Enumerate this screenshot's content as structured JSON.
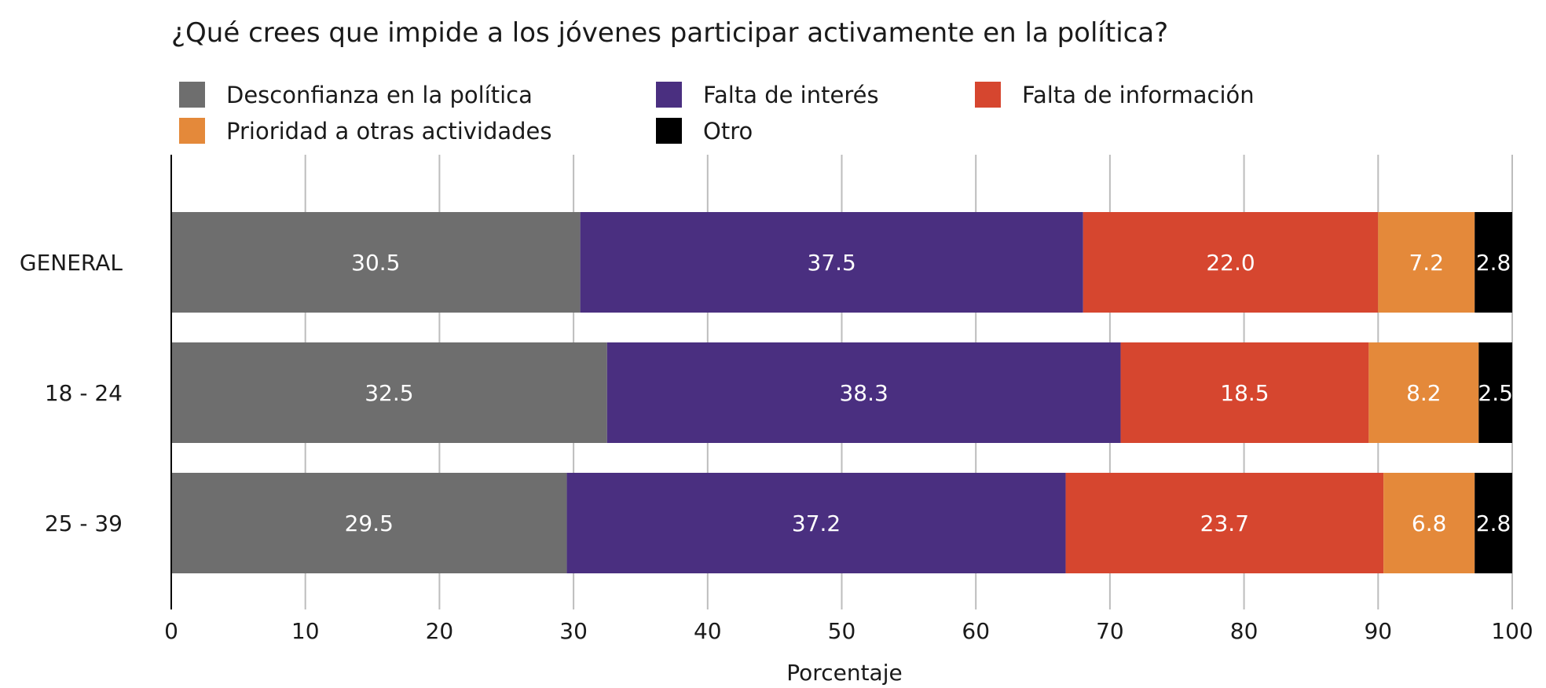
{
  "chart_data": {
    "type": "bar",
    "orientation": "horizontal",
    "stacked": true,
    "title": "¿Qué crees que impide a los jóvenes participar activamente en la política?",
    "xlabel": "Porcentaje",
    "ylabel": "",
    "xlim": [
      0,
      100
    ],
    "xticks": [
      "0",
      "10",
      "20",
      "30",
      "40",
      "50",
      "60",
      "70",
      "80",
      "90",
      "100"
    ],
    "grid": true,
    "legend_position": "top",
    "categories": [
      "GENERAL",
      "18 - 24",
      "25 - 39"
    ],
    "series": [
      {
        "name": "Desconfianza en la política",
        "color": "#6e6e6e",
        "values": [
          30.5,
          32.5,
          29.5
        ],
        "labels": [
          "30.5",
          "32.5",
          "29.5"
        ]
      },
      {
        "name": "Falta de interés",
        "color": "#4a2f80",
        "values": [
          37.5,
          38.3,
          37.2
        ],
        "labels": [
          "37.5",
          "38.3",
          "37.2"
        ]
      },
      {
        "name": "Falta de información",
        "color": "#d6462f",
        "values": [
          22.0,
          18.5,
          23.7
        ],
        "labels": [
          "22.0",
          "18.5",
          "23.7"
        ]
      },
      {
        "name": "Prioridad a otras actividades",
        "color": "#e4893a",
        "values": [
          7.2,
          8.2,
          6.8
        ],
        "labels": [
          "7.2",
          "8.2",
          "6.8"
        ]
      },
      {
        "name": "Otro",
        "color": "#000000",
        "values": [
          2.8,
          2.5,
          2.8
        ],
        "labels": [
          "2.8",
          "2.5",
          "2.8"
        ]
      }
    ]
  }
}
